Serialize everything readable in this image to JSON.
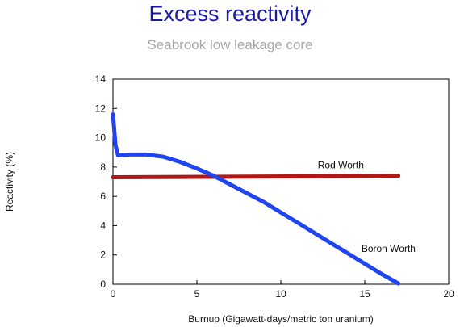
{
  "chart_data": {
    "type": "line",
    "title": "Excess reactivity",
    "subtitle": "Seabrook low leakage core",
    "xlabel": "Burnup (Gigawatt-days/metric ton uranium)",
    "ylabel": "Reactivity (%)",
    "xlim": [
      0,
      20
    ],
    "ylim": [
      0,
      14
    ],
    "xticks": [
      0,
      5,
      10,
      15,
      20
    ],
    "yticks": [
      0,
      2,
      4,
      6,
      8,
      10,
      12,
      14
    ],
    "grid": false,
    "legend": "none",
    "series": [
      {
        "name": "Rod Worth",
        "color": "#b01818",
        "x": [
          0,
          17.0
        ],
        "y": [
          7.3,
          7.4
        ]
      },
      {
        "name": "Boron Worth",
        "color": "#1f44f0",
        "x": [
          0,
          0.15,
          0.3,
          1,
          2,
          3,
          4,
          5,
          6,
          7,
          8,
          9,
          10,
          11,
          12,
          13,
          14,
          15,
          16,
          17
        ],
        "y": [
          11.6,
          9.5,
          8.8,
          8.85,
          8.85,
          8.7,
          8.35,
          7.9,
          7.4,
          6.8,
          6.2,
          5.6,
          4.9,
          4.2,
          3.5,
          2.8,
          2.1,
          1.4,
          0.7,
          0.05
        ]
      }
    ],
    "annotations": [
      {
        "text": "Rod Worth",
        "x": 12.2,
        "y": 7.9
      },
      {
        "text": "Boron Worth",
        "x": 14.8,
        "y": 2.2
      }
    ]
  }
}
